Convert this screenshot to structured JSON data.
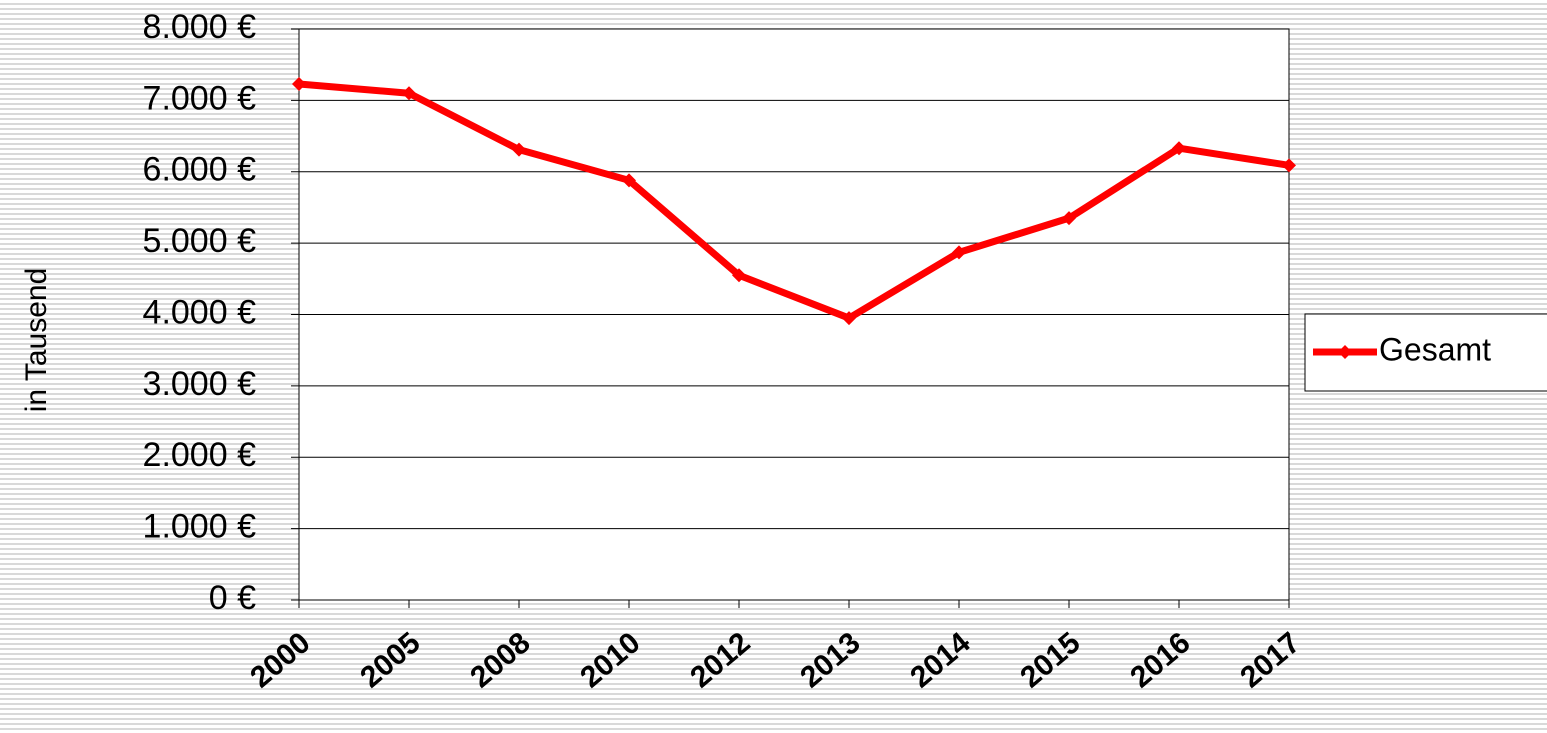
{
  "chart_data": {
    "type": "line",
    "y_label": "in Tausend",
    "categories": [
      "2000",
      "2005",
      "2008",
      "2010",
      "2012",
      "2013",
      "2014",
      "2015",
      "2016",
      "2017"
    ],
    "series": [
      {
        "name": "Gesamt",
        "color": "#ff0000",
        "values": [
          7230,
          7100,
          6310,
          5880,
          4550,
          3950,
          4870,
          5350,
          6330,
          6090
        ]
      }
    ],
    "ylim": [
      0,
      8000
    ],
    "yticks": [
      {
        "value": 0,
        "label": "0 €"
      },
      {
        "value": 1000,
        "label": "1.000 €"
      },
      {
        "value": 2000,
        "label": "2.000 €"
      },
      {
        "value": 3000,
        "label": "3.000 €"
      },
      {
        "value": 4000,
        "label": "4.000 €"
      },
      {
        "value": 5000,
        "label": "5.000 €"
      },
      {
        "value": 6000,
        "label": "6.000 €"
      },
      {
        "value": 7000,
        "label": "7.000 €"
      },
      {
        "value": 8000,
        "label": "8.000 €"
      }
    ],
    "grid": true,
    "legend": "right"
  }
}
